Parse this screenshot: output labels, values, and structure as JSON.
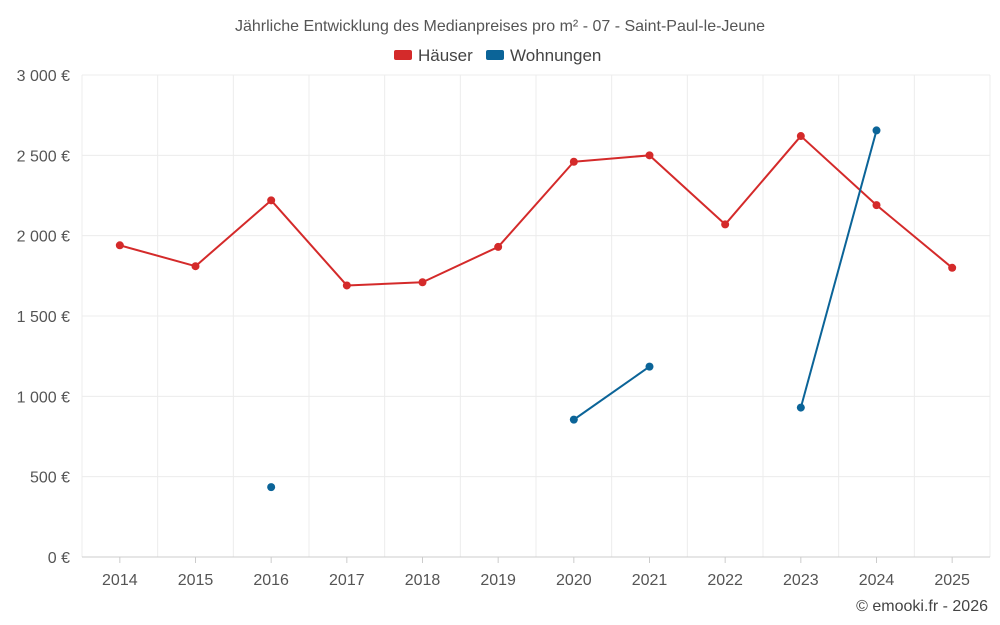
{
  "chart_data": {
    "type": "line",
    "title": "Jährliche Entwicklung des Medianpreises pro m² - 07 - Saint-Paul-le-Jeune",
    "categories": [
      "2014",
      "2015",
      "2016",
      "2017",
      "2018",
      "2019",
      "2020",
      "2021",
      "2022",
      "2023",
      "2024",
      "2025"
    ],
    "ylim": [
      0,
      3000
    ],
    "yticks": [
      0,
      500,
      1000,
      1500,
      2000,
      2500,
      3000
    ],
    "ytick_labels": [
      "0 €",
      "500 €",
      "1 000 €",
      "1 500 €",
      "2 000 €",
      "2 500 €",
      "3 000 €"
    ],
    "grid": true,
    "legend_position": "top-center",
    "series": [
      {
        "name": "Häuser",
        "color": "#d42a2a",
        "values": [
          1940,
          1810,
          2220,
          1690,
          1710,
          1930,
          2460,
          2500,
          2070,
          2620,
          2190,
          1800
        ]
      },
      {
        "name": "Wohnungen",
        "color": "#0b6498",
        "values": [
          null,
          null,
          435,
          null,
          null,
          null,
          855,
          1185,
          null,
          930,
          2655,
          null
        ]
      }
    ],
    "credit": "© emooki.fr - 2026"
  }
}
